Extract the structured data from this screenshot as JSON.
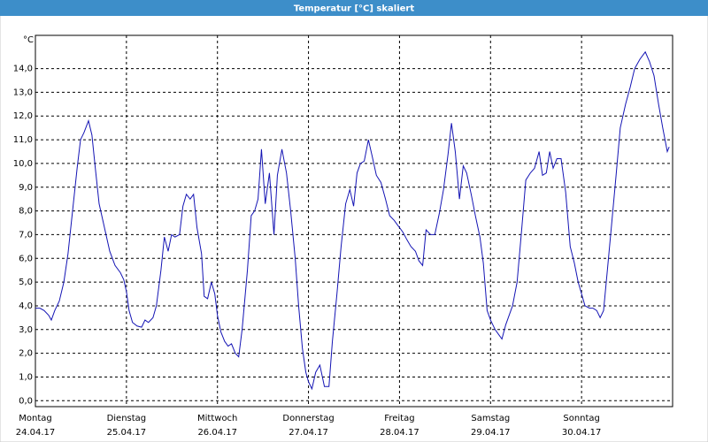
{
  "chart_data": {
    "type": "line",
    "title": "Temperatur [°C] skaliert",
    "y_label": "°C",
    "xlim": [
      0,
      168
    ],
    "ylim": [
      -0.25,
      15.4
    ],
    "grid": true,
    "xticks": [
      {
        "value": 0,
        "label": "Montag",
        "date": "24.04.17"
      },
      {
        "value": 24,
        "label": "Dienstag",
        "date": "25.04.17"
      },
      {
        "value": 48,
        "label": "Mittwoch",
        "date": "26.04.17"
      },
      {
        "value": 72,
        "label": "Donnerstag",
        "date": "27.04.17"
      },
      {
        "value": 96,
        "label": "Freitag",
        "date": "28.04.17"
      },
      {
        "value": 120,
        "label": "Samstag",
        "date": "29.04.17"
      },
      {
        "value": 144,
        "label": "Sonntag",
        "date": "30.04.17"
      }
    ],
    "yticks": [
      {
        "value": 0,
        "label": "0,0"
      },
      {
        "value": 1,
        "label": "1,0"
      },
      {
        "value": 2,
        "label": "2,0"
      },
      {
        "value": 3,
        "label": "3,0"
      },
      {
        "value": 4,
        "label": "4,0"
      },
      {
        "value": 5,
        "label": "5,0"
      },
      {
        "value": 6,
        "label": "6,0"
      },
      {
        "value": 7,
        "label": "7,0"
      },
      {
        "value": 8,
        "label": "8,0"
      },
      {
        "value": 9,
        "label": "9,0"
      },
      {
        "value": 10,
        "label": "10,0"
      },
      {
        "value": 11,
        "label": "11,0"
      },
      {
        "value": 12,
        "label": "12,0"
      },
      {
        "value": 13,
        "label": "13,0"
      },
      {
        "value": 14,
        "label": "14,0"
      }
    ],
    "x": [
      0,
      1.2,
      2.3,
      3.5,
      4.2,
      5.1,
      6.3,
      7.5,
      8.6,
      9.8,
      11.0,
      11.9,
      12.8,
      14.0,
      14.9,
      15.8,
      16.8,
      18.2,
      19.6,
      21.0,
      22.4,
      23.3,
      24.0,
      24.7,
      25.6,
      26.8,
      28.0,
      28.9,
      29.8,
      31.0,
      31.9,
      33.1,
      34.0,
      35.0,
      35.9,
      36.8,
      38.0,
      38.9,
      39.8,
      40.8,
      41.7,
      42.6,
      43.8,
      44.5,
      45.4,
      46.4,
      47.3,
      48.0,
      48.9,
      49.9,
      50.8,
      51.7,
      52.7,
      53.6,
      54.5,
      55.9,
      56.9,
      57.8,
      58.7,
      59.6,
      60.6,
      61.7,
      62.9,
      63.8,
      65.0,
      66.2,
      67.3,
      68.5,
      69.4,
      70.4,
      71.3,
      72.0,
      72.9,
      73.9,
      75.0,
      76.2,
      77.4,
      78.3,
      79.5,
      80.6,
      81.8,
      82.9,
      83.9,
      84.8,
      85.7,
      86.7,
      87.8,
      88.8,
      89.9,
      91.1,
      92.3,
      93.4,
      94.6,
      95.5,
      96.0,
      96.9,
      97.9,
      99.0,
      100.2,
      101.1,
      102.1,
      103.0,
      104.2,
      105.3,
      106.5,
      107.6,
      108.8,
      109.7,
      110.7,
      111.8,
      112.8,
      113.7,
      114.9,
      116.0,
      117.2,
      118.1,
      119.1,
      120.0,
      121.2,
      122.1,
      123.0,
      124.0,
      124.9,
      125.8,
      127.0,
      128.2,
      129.3,
      130.5,
      131.6,
      132.8,
      133.7,
      134.7,
      135.6,
      136.5,
      137.5,
      138.6,
      139.8,
      141.0,
      142.1,
      143.1,
      144.0,
      144.9,
      146.1,
      147.0,
      148.0,
      148.9,
      149.8,
      150.8,
      151.9,
      153.1,
      154.2,
      155.6,
      156.8,
      158.0,
      159.4,
      160.8,
      161.9,
      163.1,
      164.3,
      165.4,
      166.6,
      167.1
    ],
    "series": [
      {
        "color": "#1414b4",
        "values": [
          3.9,
          3.9,
          3.8,
          3.6,
          3.4,
          3.8,
          4.2,
          5.0,
          6.2,
          8.0,
          9.8,
          11.0,
          11.3,
          11.8,
          11.2,
          9.8,
          8.3,
          7.3,
          6.3,
          5.7,
          5.4,
          5.1,
          4.6,
          3.8,
          3.3,
          3.15,
          3.1,
          3.4,
          3.3,
          3.5,
          4.0,
          5.5,
          6.9,
          6.3,
          7.0,
          6.9,
          7.0,
          8.2,
          8.7,
          8.5,
          8.7,
          7.3,
          6.2,
          4.4,
          4.3,
          5.0,
          4.5,
          3.6,
          2.9,
          2.5,
          2.3,
          2.4,
          2.0,
          1.85,
          3.0,
          5.5,
          7.8,
          8.0,
          8.5,
          10.6,
          8.3,
          9.6,
          7.0,
          9.5,
          10.6,
          9.6,
          8.0,
          6.0,
          4.0,
          2.2,
          1.2,
          0.8,
          0.5,
          1.2,
          1.5,
          0.6,
          0.6,
          2.5,
          4.5,
          6.5,
          8.3,
          8.9,
          8.2,
          9.6,
          10.0,
          10.1,
          11.0,
          10.3,
          9.5,
          9.2,
          8.5,
          7.8,
          7.6,
          7.4,
          7.3,
          7.1,
          6.8,
          6.5,
          6.3,
          5.9,
          5.7,
          7.2,
          7.0,
          7.0,
          7.9,
          8.9,
          10.4,
          11.7,
          10.5,
          8.5,
          9.9,
          9.6,
          8.7,
          7.8,
          6.9,
          5.8,
          3.8,
          3.4,
          3.0,
          2.8,
          2.6,
          3.2,
          3.6,
          4.0,
          5.0,
          7.2,
          9.3,
          9.6,
          9.8,
          10.5,
          9.5,
          9.6,
          10.5,
          9.8,
          10.2,
          10.2,
          8.8,
          6.5,
          5.8,
          5.0,
          4.5,
          4.0,
          3.9,
          3.9,
          3.8,
          3.5,
          3.8,
          5.5,
          7.4,
          9.5,
          11.5,
          12.5,
          13.2,
          14.0,
          14.4,
          14.7,
          14.3,
          13.7,
          12.5,
          11.5,
          10.5,
          10.7
        ]
      }
    ]
  }
}
